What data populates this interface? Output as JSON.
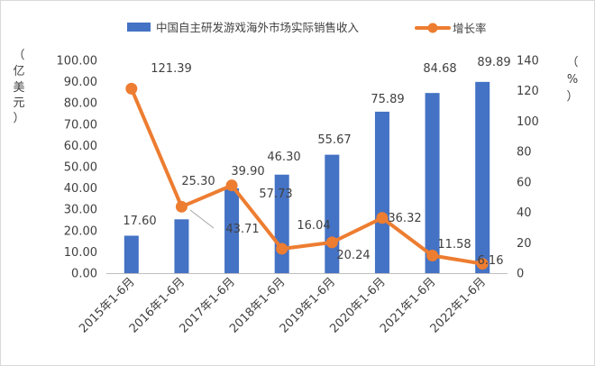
{
  "chart_data": {
    "type": "bar+line",
    "categories": [
      "2015年1-6月",
      "2016年1-6月",
      "2017年1-6月",
      "2018年1-6月",
      "2019年1-6月",
      "2020年1-6月",
      "2021年1-6月",
      "2022年1-6月"
    ],
    "series": [
      {
        "name": "中国自主研发游戏海外市场实际销售收入",
        "type": "bar",
        "axis": "left",
        "values": [
          17.6,
          25.3,
          39.9,
          46.3,
          55.67,
          75.89,
          84.68,
          89.89
        ],
        "labels": [
          "17.60",
          "25.30",
          "39.90",
          "46.30",
          "55.67",
          "75.89",
          "84.68",
          "89.89"
        ],
        "color": "#4472c4"
      },
      {
        "name": "增长率",
        "type": "line",
        "axis": "right",
        "values": [
          121.39,
          43.71,
          57.73,
          16.04,
          20.24,
          36.32,
          11.58,
          6.16
        ],
        "labels": [
          "121.39",
          "43.71",
          "57.73",
          "16.04",
          "20.24",
          "36.32",
          "11.58",
          "6.16"
        ],
        "color": "#ed7d31"
      }
    ],
    "y_left": {
      "unit": [
        "（",
        "亿",
        "美",
        "元",
        "）"
      ],
      "range": [
        0,
        100
      ],
      "ticks": [
        "0.00",
        "10.00",
        "20.00",
        "30.00",
        "40.00",
        "50.00",
        "60.00",
        "70.00",
        "80.00",
        "90.00",
        "100.00"
      ]
    },
    "y_right": {
      "unit": [
        "（",
        "%",
        "）"
      ],
      "range": [
        0,
        140
      ],
      "ticks": [
        "0",
        "20",
        "40",
        "60",
        "80",
        "100",
        "120",
        "140"
      ]
    },
    "legend_position": "top",
    "grid": false
  }
}
